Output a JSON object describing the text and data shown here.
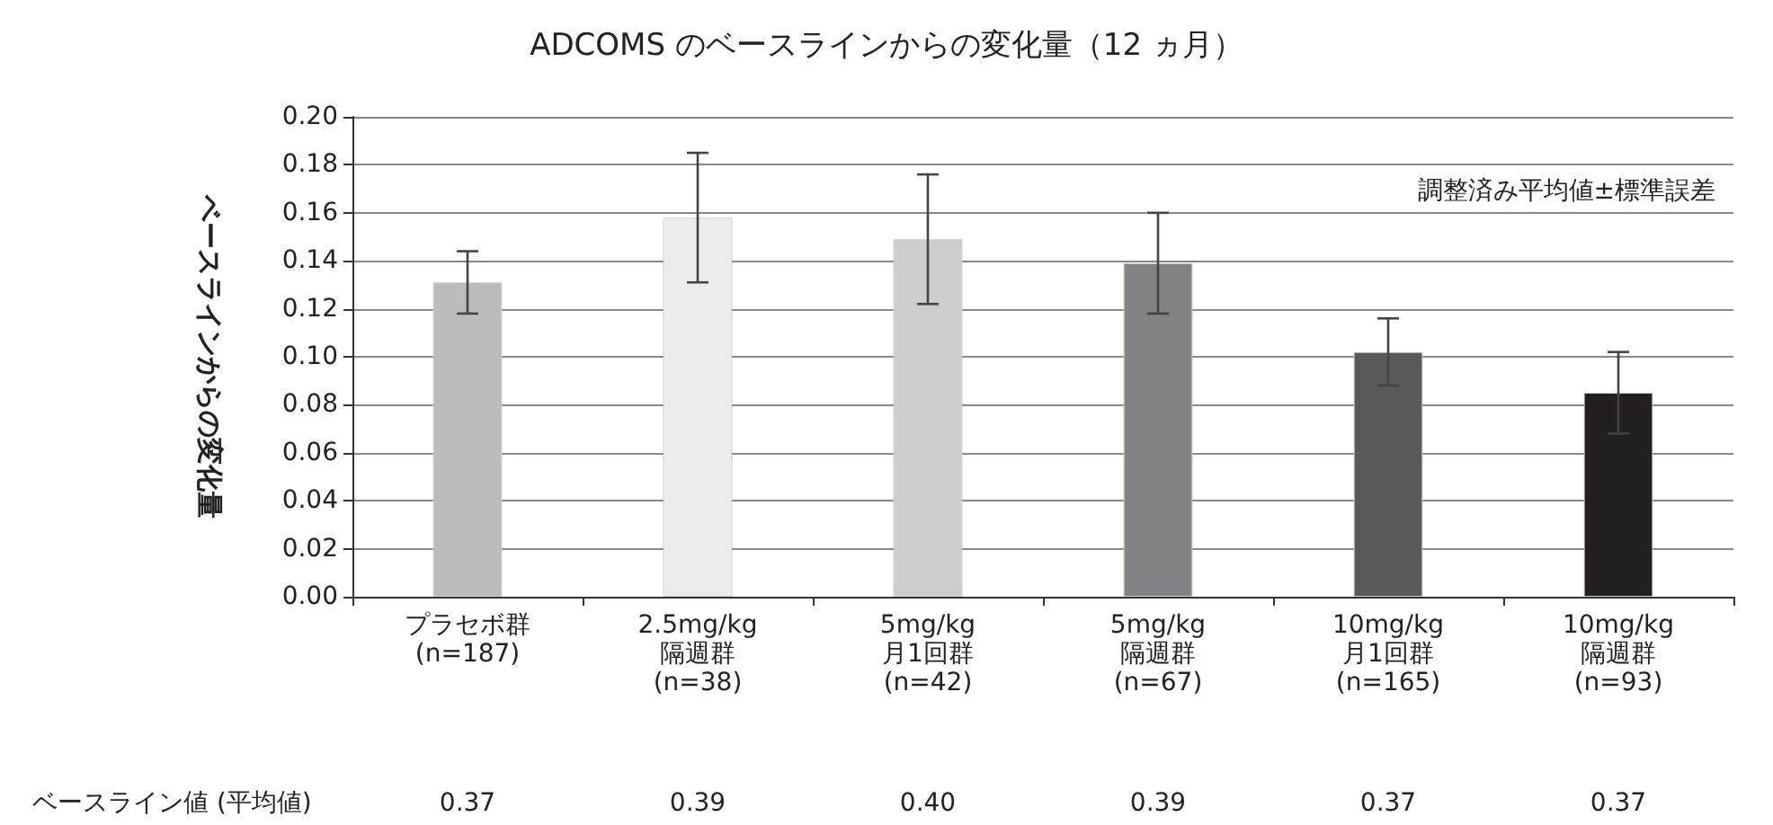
{
  "chart_data": {
    "type": "bar",
    "title": "ADCOMS のベースラインからの変化量（12 ヵ月）",
    "ylabel": "ベースラインからの変化量",
    "categories": [
      "プラセボ群\n(n=187)",
      "2.5mg/kg\n隔週群\n(n=38)",
      "5mg/kg\n月1回群\n(n=42)",
      "5mg/kg\n隔週群\n(n=67)",
      "10mg/kg\n月1回群\n(n=165)",
      "10mg/kg\n隔週群\n(n=93)"
    ],
    "values": [
      0.131,
      0.158,
      0.149,
      0.139,
      0.102,
      0.085
    ],
    "errors": [
      0.013,
      0.027,
      0.027,
      0.021,
      0.014,
      0.017
    ],
    "colors": [
      "#bbbcbe",
      "#ececec",
      "#cdcdcf",
      "#818285",
      "#58595b",
      "#231f20"
    ],
    "ylim": [
      0,
      0.2
    ],
    "yticks": [
      {
        "value": 0,
        "label": "0.00"
      },
      {
        "value": 0.02,
        "label": "0.02"
      },
      {
        "value": 0.04,
        "label": "0.04"
      },
      {
        "value": 0.06,
        "label": "0.06"
      },
      {
        "value": 0.08,
        "label": "0.08"
      },
      {
        "value": 0.1,
        "label": "0.10"
      },
      {
        "value": 0.12,
        "label": "0.12"
      },
      {
        "value": 0.14,
        "label": "0.14"
      },
      {
        "value": 0.16,
        "label": "0.16"
      },
      {
        "value": 0.18,
        "label": "0.18"
      },
      {
        "value": 0.2,
        "label": "0.20"
      }
    ],
    "grid": "y",
    "annotations": [
      "調整済み平均値±標準誤差",
      "ベースライン値 (平均値)",
      "0.37",
      "0.39",
      "0.40",
      "0.39",
      "0.37",
      "0.37"
    ]
  }
}
